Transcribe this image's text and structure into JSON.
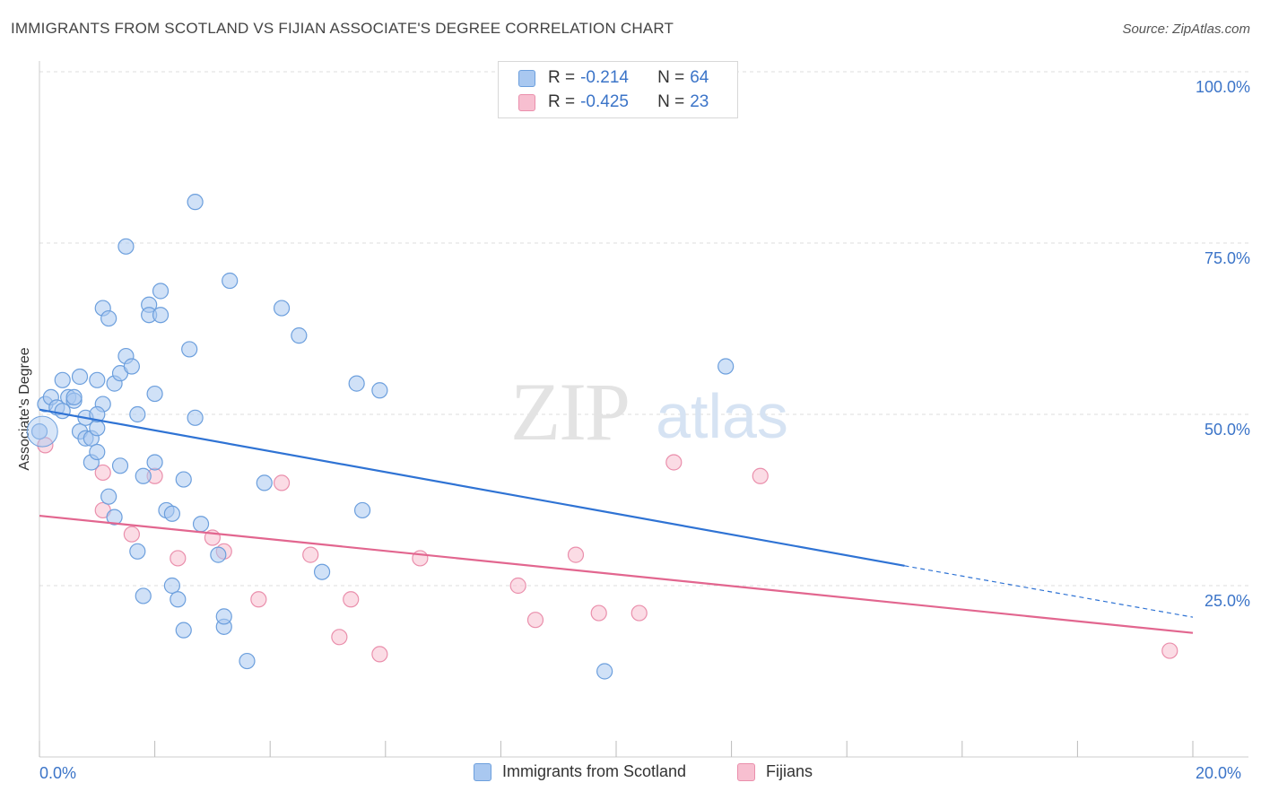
{
  "header": {
    "title": "IMMIGRANTS FROM SCOTLAND VS FIJIAN ASSOCIATE'S DEGREE CORRELATION CHART",
    "source": "Source: ZipAtlas.com"
  },
  "watermark": {
    "zip": "ZIP",
    "atlas": "atlas"
  },
  "legend_top": {
    "rows": [
      {
        "r_label": "R = ",
        "r_value": "-0.214",
        "n_label": "N = ",
        "n_value": "64"
      },
      {
        "r_label": "R = ",
        "r_value": "-0.425",
        "n_label": "N = ",
        "n_value": "23"
      }
    ]
  },
  "legend_bottom": {
    "items": [
      {
        "label": "Immigrants from Scotland"
      },
      {
        "label": "Fijians"
      }
    ]
  },
  "axes": {
    "ylabel": "Associate's Degree",
    "x_min_label": "0.0%",
    "x_max_label": "20.0%",
    "y_ticks": [
      "100.0%",
      "75.0%",
      "50.0%",
      "25.0%"
    ]
  },
  "colors": {
    "blue_fill": "#a9c8f0",
    "blue_stroke": "#6c9fdd",
    "blue_line": "#2f73d4",
    "pink_fill": "#f7bfd0",
    "pink_stroke": "#ea8fac",
    "pink_line": "#e2668f",
    "grid": "#dddddd",
    "tick_label": "#3b74c8"
  },
  "chart_data": {
    "type": "scatter",
    "xlim": [
      0,
      20
    ],
    "ylim": [
      0,
      100
    ],
    "x_unit": "%",
    "y_unit": "%",
    "series": [
      {
        "name": "Immigrants from Scotland",
        "color": "#a9c8f0",
        "r": -0.214,
        "n": 64,
        "trend": {
          "x": [
            0,
            15
          ],
          "y": [
            50.7,
            27.9
          ],
          "dashed_to": [
            20,
            20.4
          ]
        },
        "points": [
          [
            0.1,
            51.5
          ],
          [
            0.2,
            52.5
          ],
          [
            0.3,
            51.0
          ],
          [
            0.4,
            55.0
          ],
          [
            0.5,
            52.5
          ],
          [
            0.6,
            52.0
          ],
          [
            0.6,
            52.5
          ],
          [
            0.7,
            47.5
          ],
          [
            0.7,
            55.5
          ],
          [
            0.8,
            49.5
          ],
          [
            0.8,
            46.5
          ],
          [
            0.9,
            43.0
          ],
          [
            0.9,
            46.5
          ],
          [
            1.0,
            44.5
          ],
          [
            1.0,
            55.0
          ],
          [
            1.1,
            51.5
          ],
          [
            1.0,
            48.0
          ],
          [
            1.0,
            50.0
          ],
          [
            1.1,
            65.5
          ],
          [
            1.2,
            38.0
          ],
          [
            1.2,
            64.0
          ],
          [
            1.3,
            54.5
          ],
          [
            1.3,
            35.0
          ],
          [
            1.4,
            42.5
          ],
          [
            1.4,
            56.0
          ],
          [
            1.5,
            74.5
          ],
          [
            1.5,
            58.5
          ],
          [
            1.6,
            57.0
          ],
          [
            1.7,
            50.0
          ],
          [
            1.7,
            30.0
          ],
          [
            1.8,
            41.0
          ],
          [
            1.8,
            23.5
          ],
          [
            1.9,
            66.0
          ],
          [
            1.9,
            64.5
          ],
          [
            2.0,
            43.0
          ],
          [
            2.0,
            53.0
          ],
          [
            2.1,
            68.0
          ],
          [
            2.1,
            64.5
          ],
          [
            2.2,
            36.0
          ],
          [
            2.3,
            25.0
          ],
          [
            2.3,
            35.5
          ],
          [
            2.4,
            23.0
          ],
          [
            2.5,
            18.5
          ],
          [
            2.5,
            40.5
          ],
          [
            2.6,
            59.5
          ],
          [
            2.7,
            49.5
          ],
          [
            2.7,
            81.0
          ],
          [
            2.8,
            34.0
          ],
          [
            3.1,
            29.5
          ],
          [
            3.2,
            19.0
          ],
          [
            3.2,
            20.5
          ],
          [
            3.3,
            69.5
          ],
          [
            3.6,
            14.0
          ],
          [
            3.9,
            40.0
          ],
          [
            4.2,
            65.5
          ],
          [
            4.5,
            61.5
          ],
          [
            4.9,
            27.0
          ],
          [
            5.5,
            54.5
          ],
          [
            5.6,
            36.0
          ],
          [
            5.9,
            53.5
          ],
          [
            9.8,
            12.5
          ],
          [
            11.9,
            57.0
          ],
          [
            0.0,
            47.5
          ],
          [
            0.4,
            50.5
          ]
        ]
      },
      {
        "name": "Fijians",
        "color": "#f7bfd0",
        "r": -0.425,
        "n": 23,
        "trend": {
          "x": [
            0,
            20
          ],
          "y": [
            35.2,
            18.1
          ]
        },
        "points": [
          [
            0.1,
            45.5
          ],
          [
            1.1,
            41.5
          ],
          [
            1.1,
            36.0
          ],
          [
            1.6,
            32.5
          ],
          [
            2.0,
            41.0
          ],
          [
            2.4,
            29.0
          ],
          [
            3.0,
            32.0
          ],
          [
            3.2,
            30.0
          ],
          [
            3.8,
            23.0
          ],
          [
            4.2,
            40.0
          ],
          [
            4.7,
            29.5
          ],
          [
            5.2,
            17.5
          ],
          [
            5.4,
            23.0
          ],
          [
            5.9,
            15.0
          ],
          [
            6.6,
            29.0
          ],
          [
            8.3,
            25.0
          ],
          [
            8.6,
            20.0
          ],
          [
            9.3,
            29.5
          ],
          [
            9.7,
            21.0
          ],
          [
            10.4,
            21.0
          ],
          [
            11.0,
            43.0
          ],
          [
            12.5,
            41.0
          ],
          [
            19.6,
            15.5
          ]
        ]
      }
    ]
  }
}
